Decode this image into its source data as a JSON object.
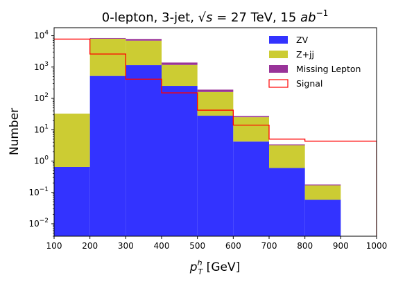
{
  "chart_data": {
    "type": "bar",
    "stacked": true,
    "title": {
      "prefix": "0-lepton, 3-jet, ",
      "math": "√s",
      "mid": " = 27 TeV, 15 ",
      "unit_base": "ab",
      "unit_exp": "−1"
    },
    "xlabel": {
      "base": "p",
      "sub": "T",
      "sup": "h",
      "suffix": " [GeV]"
    },
    "ylabel": "Number",
    "x_edges": [
      100,
      200,
      300,
      400,
      500,
      600,
      700,
      800,
      900,
      1000
    ],
    "xlim": [
      100,
      1000
    ],
    "ylim": [
      0.004,
      18000
    ],
    "yscale": "log",
    "x_ticks": [
      "100",
      "200",
      "300",
      "400",
      "500",
      "600",
      "700",
      "800",
      "900",
      "1000"
    ],
    "y_ticks": [
      {
        "value": 0.01,
        "exp": "−2"
      },
      {
        "value": 0.1,
        "exp": "−1"
      },
      {
        "value": 1,
        "exp": "0"
      },
      {
        "value": 10,
        "exp": "1"
      },
      {
        "value": 100,
        "exp": "2"
      },
      {
        "value": 1000,
        "exp": "3"
      },
      {
        "value": 10000,
        "exp": "4"
      }
    ],
    "series": [
      {
        "name": "ZV",
        "color": "#3333ff",
        "type": "stacked-fill",
        "values": [
          0.65,
          520,
          1150,
          250,
          28,
          4.2,
          0.6,
          0.058,
          0
        ]
      },
      {
        "name": "Z+jj",
        "color": "#cccc33",
        "type": "stacked-fill",
        "values": [
          32,
          7500,
          5800,
          920,
          132,
          21,
          2.6,
          0.11,
          0
        ]
      },
      {
        "name": "Missing Lepton",
        "color": "#993399",
        "type": "stacked-fill",
        "values": [
          0,
          380,
          900,
          220,
          30,
          2,
          0.2,
          0.01,
          0
        ]
      },
      {
        "name": "Signal",
        "color": "#ff0000",
        "type": "step",
        "values": [
          7800,
          2600,
          410,
          150,
          42,
          14,
          5,
          4.3,
          4.3
        ]
      }
    ],
    "legend_position": "top-right"
  }
}
